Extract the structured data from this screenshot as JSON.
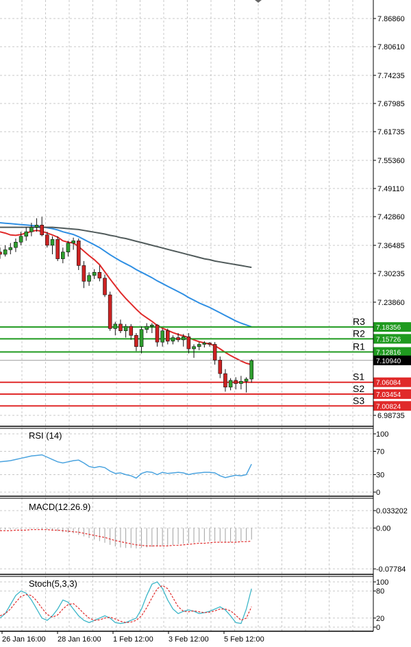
{
  "chart_data": {
    "type": "candlestick",
    "colors": {
      "bull": "#2e9e2e",
      "bear": "#cc2222",
      "ma_fast": "#e02a2a",
      "ma_mid": "#2f8fe3",
      "ma_slow": "#505a5a",
      "resistance": "#1f9a1f",
      "support": "#e02a2a",
      "current": "#000000",
      "rsi": "#4aa3df",
      "macd_hist": "#a0a0a0",
      "macd_signal": "#e02a2a",
      "stoch_k": "#3cb6c8",
      "stoch_d": "#e02a2a",
      "grid": "#c8c8c8"
    },
    "price_axis": {
      "ticks": [
        "7.86860",
        "7.80610",
        "7.74235",
        "7.67985",
        "7.61735",
        "7.55360",
        "7.49110",
        "7.42860",
        "7.36485",
        "7.30235",
        "7.23860",
        "6.98735"
      ],
      "range": [
        6.97,
        7.89
      ]
    },
    "x_labels": [
      "26 Jan 16:00",
      "28 Jan 16:00",
      "1 Feb 12:00",
      "3 Feb 12:00",
      "5 Feb 12:00"
    ],
    "candles": [
      [
        7.35,
        7.36,
        7.335,
        7.345
      ],
      [
        7.345,
        7.365,
        7.34,
        7.355
      ],
      [
        7.355,
        7.37,
        7.345,
        7.36
      ],
      [
        7.36,
        7.38,
        7.35,
        7.372
      ],
      [
        7.372,
        7.395,
        7.365,
        7.385
      ],
      [
        7.385,
        7.405,
        7.375,
        7.395
      ],
      [
        7.395,
        7.415,
        7.385,
        7.405
      ],
      [
        7.405,
        7.425,
        7.395,
        7.41
      ],
      [
        7.41,
        7.428,
        7.385,
        7.388
      ],
      [
        7.388,
        7.395,
        7.36,
        7.365
      ],
      [
        7.365,
        7.385,
        7.345,
        7.378
      ],
      [
        7.378,
        7.385,
        7.33,
        7.335
      ],
      [
        7.335,
        7.36,
        7.325,
        7.35
      ],
      [
        7.35,
        7.375,
        7.34,
        7.37
      ],
      [
        7.37,
        7.382,
        7.355,
        7.375
      ],
      [
        7.375,
        7.38,
        7.31,
        7.32
      ],
      [
        7.32,
        7.33,
        7.27,
        7.285
      ],
      [
        7.285,
        7.305,
        7.275,
        7.298
      ],
      [
        7.298,
        7.312,
        7.29,
        7.305
      ],
      [
        7.305,
        7.32,
        7.285,
        7.292
      ],
      [
        7.292,
        7.3,
        7.25,
        7.255
      ],
      [
        7.255,
        7.262,
        7.175,
        7.18
      ],
      [
        7.18,
        7.195,
        7.165,
        7.19
      ],
      [
        7.19,
        7.2,
        7.17,
        7.175
      ],
      [
        7.175,
        7.19,
        7.16,
        7.185
      ],
      [
        7.185,
        7.19,
        7.155,
        7.165
      ],
      [
        7.165,
        7.17,
        7.13,
        7.14
      ],
      [
        7.14,
        7.185,
        7.125,
        7.178
      ],
      [
        7.178,
        7.192,
        7.17,
        7.185
      ],
      [
        7.185,
        7.192,
        7.17,
        7.188
      ],
      [
        7.188,
        7.19,
        7.14,
        7.15
      ],
      [
        7.15,
        7.18,
        7.14,
        7.175
      ],
      [
        7.175,
        7.18,
        7.145,
        7.152
      ],
      [
        7.152,
        7.165,
        7.145,
        7.16
      ],
      [
        7.16,
        7.17,
        7.15,
        7.155
      ],
      [
        7.155,
        7.168,
        7.14,
        7.162
      ],
      [
        7.162,
        7.17,
        7.125,
        7.135
      ],
      [
        7.135,
        7.145,
        7.115,
        7.14
      ],
      [
        7.14,
        7.15,
        7.132,
        7.145
      ],
      [
        7.145,
        7.152,
        7.138,
        7.148
      ],
      [
        7.148,
        7.15,
        7.14,
        7.145
      ],
      [
        7.145,
        7.15,
        7.1,
        7.11
      ],
      [
        7.11,
        7.118,
        7.07,
        7.08
      ],
      [
        7.08,
        7.09,
        7.04,
        7.05
      ],
      [
        7.05,
        7.07,
        7.043,
        7.065
      ],
      [
        7.065,
        7.072,
        7.045,
        7.058
      ],
      [
        7.058,
        7.075,
        7.045,
        7.063
      ],
      [
        7.063,
        7.072,
        7.038,
        7.068
      ],
      [
        7.068,
        7.112,
        7.06,
        7.109
      ]
    ],
    "moving_averages": [
      {
        "key": "ma_fast",
        "values": [
          7.395,
          7.392,
          7.388,
          7.387,
          7.389,
          7.392,
          7.396,
          7.398,
          7.396,
          7.392,
          7.388,
          7.383,
          7.375,
          7.372,
          7.37,
          7.362,
          7.352,
          7.342,
          7.333,
          7.322,
          7.306,
          7.29,
          7.275,
          7.26,
          7.247,
          7.235,
          7.223,
          7.212,
          7.204,
          7.196,
          7.187,
          7.181,
          7.176,
          7.171,
          7.167,
          7.164,
          7.16,
          7.155,
          7.151,
          7.148,
          7.146,
          7.142,
          7.135,
          7.127,
          7.12,
          7.114,
          7.108,
          7.103,
          7.1
        ]
      },
      {
        "key": "ma_mid",
        "values": [
          7.415,
          7.414,
          7.413,
          7.412,
          7.411,
          7.41,
          7.409,
          7.408,
          7.406,
          7.404,
          7.402,
          7.399,
          7.395,
          7.392,
          7.389,
          7.384,
          7.378,
          7.372,
          7.366,
          7.36,
          7.352,
          7.344,
          7.337,
          7.33,
          7.324,
          7.318,
          7.311,
          7.305,
          7.299,
          7.293,
          7.286,
          7.28,
          7.274,
          7.268,
          7.262,
          7.256,
          7.249,
          7.243,
          7.237,
          7.232,
          7.227,
          7.221,
          7.215,
          7.209,
          7.203,
          7.197,
          7.192,
          7.188,
          7.184
        ]
      },
      {
        "key": "ma_slow",
        "values": [
          7.405,
          7.405,
          7.405,
          7.405,
          7.405,
          7.405,
          7.405,
          7.405,
          7.405,
          7.405,
          7.405,
          7.404,
          7.403,
          7.402,
          7.401,
          7.4,
          7.398,
          7.396,
          7.394,
          7.392,
          7.39,
          7.387,
          7.385,
          7.382,
          7.38,
          7.377,
          7.374,
          7.371,
          7.368,
          7.365,
          7.362,
          7.359,
          7.356,
          7.353,
          7.35,
          7.347,
          7.344,
          7.341,
          7.338,
          7.335,
          7.333,
          7.33,
          7.328,
          7.326,
          7.324,
          7.322,
          7.32,
          7.318,
          7.316
        ]
      }
    ],
    "levels": [
      {
        "tag": "R3",
        "value": 7.18356,
        "label": "7.18356",
        "kind": "resistance"
      },
      {
        "tag": "R2",
        "value": 7.15726,
        "label": "7.15726",
        "kind": "resistance"
      },
      {
        "tag": "R1",
        "value": 7.12816,
        "label": "7.12816",
        "kind": "resistance"
      },
      {
        "tag": "S1",
        "value": 7.06084,
        "label": "7.06084",
        "kind": "support"
      },
      {
        "tag": "S2",
        "value": 7.03454,
        "label": "7.03454",
        "kind": "support"
      },
      {
        "tag": "S3",
        "value": 7.00824,
        "label": "7.00824",
        "kind": "support"
      }
    ],
    "current_price": {
      "value": 7.1094,
      "label": "7.10940"
    },
    "rsi": {
      "title": "RSI (14)",
      "ticks": [
        "100",
        "70",
        "30",
        "0"
      ],
      "range": [
        0,
        100
      ],
      "values": [
        52,
        53,
        54,
        56,
        58,
        60,
        62,
        63,
        64,
        60,
        56,
        52,
        50,
        52,
        54,
        55,
        50,
        44,
        42,
        44,
        42,
        36,
        32,
        33,
        30,
        28,
        24,
        32,
        35,
        34,
        30,
        34,
        32,
        33,
        34,
        33,
        30,
        32,
        33,
        34,
        34,
        33,
        28,
        25,
        27,
        29,
        28,
        30,
        48
      ]
    },
    "macd": {
      "title": "MACD(12.26.9)",
      "ticks": [
        "0.033202",
        "0.00",
        "-0.07784"
      ],
      "range": [
        -0.0778,
        0.0332
      ],
      "histogram": [
        -0.004,
        -0.003,
        -0.003,
        -0.002,
        -0.002,
        -0.001,
        -0.001,
        -0.001,
        -0.002,
        -0.003,
        -0.004,
        -0.006,
        -0.008,
        -0.009,
        -0.01,
        -0.013,
        -0.016,
        -0.019,
        -0.022,
        -0.025,
        -0.028,
        -0.032,
        -0.035,
        -0.037,
        -0.038,
        -0.038,
        -0.039,
        -0.038,
        -0.037,
        -0.036,
        -0.035,
        -0.034,
        -0.033,
        -0.032,
        -0.031,
        -0.03,
        -0.029,
        -0.028,
        -0.027,
        -0.026,
        -0.025,
        -0.025,
        -0.026,
        -0.027,
        -0.027,
        -0.026,
        -0.025,
        -0.024,
        -0.022
      ],
      "signal": [
        -0.005,
        -0.005,
        -0.005,
        -0.004,
        -0.004,
        -0.004,
        -0.003,
        -0.003,
        -0.003,
        -0.003,
        -0.004,
        -0.004,
        -0.005,
        -0.006,
        -0.007,
        -0.008,
        -0.01,
        -0.012,
        -0.014,
        -0.016,
        -0.018,
        -0.021,
        -0.024,
        -0.026,
        -0.028,
        -0.03,
        -0.032,
        -0.033,
        -0.034,
        -0.034,
        -0.034,
        -0.034,
        -0.034,
        -0.033,
        -0.033,
        -0.032,
        -0.031,
        -0.03,
        -0.029,
        -0.029,
        -0.028,
        -0.027,
        -0.027,
        -0.027,
        -0.027,
        -0.027,
        -0.026,
        -0.026,
        -0.025
      ]
    },
    "stoch": {
      "title": "Stoch(5,3,3)",
      "ticks": [
        "100",
        "80",
        "20",
        "0"
      ],
      "range": [
        0,
        100
      ],
      "k": [
        20,
        30,
        50,
        70,
        80,
        75,
        60,
        40,
        20,
        15,
        25,
        40,
        60,
        55,
        40,
        25,
        15,
        10,
        15,
        20,
        25,
        20,
        10,
        8,
        10,
        15,
        20,
        40,
        70,
        95,
        100,
        85,
        60,
        40,
        30,
        35,
        38,
        35,
        30,
        32,
        35,
        40,
        45,
        38,
        25,
        10,
        8,
        40,
        85
      ],
      "d": [
        25,
        30,
        40,
        55,
        68,
        72,
        70,
        58,
        42,
        28,
        22,
        27,
        40,
        50,
        52,
        42,
        30,
        20,
        15,
        16,
        20,
        22,
        18,
        13,
        10,
        11,
        15,
        25,
        43,
        65,
        85,
        92,
        85,
        65,
        45,
        35,
        34,
        36,
        34,
        32,
        33,
        36,
        40,
        40,
        36,
        26,
        15,
        20,
        45
      ]
    }
  }
}
